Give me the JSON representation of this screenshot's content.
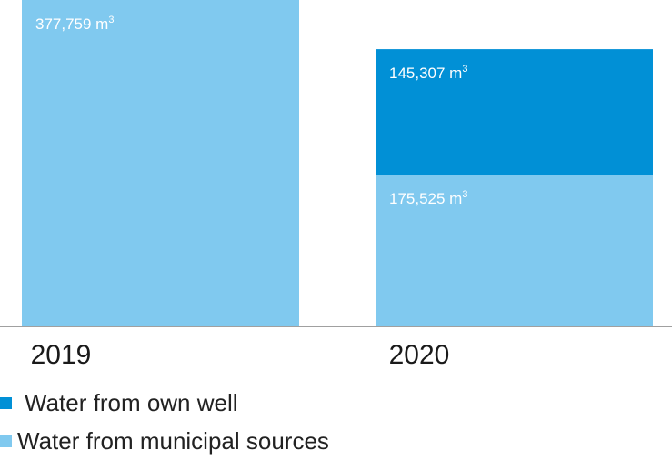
{
  "chart_data": {
    "type": "bar",
    "stacked": true,
    "categories": [
      "2019",
      "2020"
    ],
    "ylim": [
      0,
      377759
    ],
    "grid": false,
    "legend_position": "bottom-left",
    "unit_suffix": "m³",
    "series": [
      {
        "name": "Water from municipal sources",
        "color": "#80c9ef",
        "values": [
          377759,
          175525
        ],
        "labels": [
          "377,759",
          "175,525"
        ]
      },
      {
        "name": "Water from own well",
        "color": "#0190d6",
        "values": [
          0,
          145307
        ],
        "labels": [
          "",
          "145,307"
        ]
      }
    ]
  },
  "legend": {
    "items": [
      {
        "label": "Water from own well",
        "color": "#0190d6"
      },
      {
        "label": "Water from municipal sources",
        "color": "#80c9ef"
      }
    ]
  }
}
